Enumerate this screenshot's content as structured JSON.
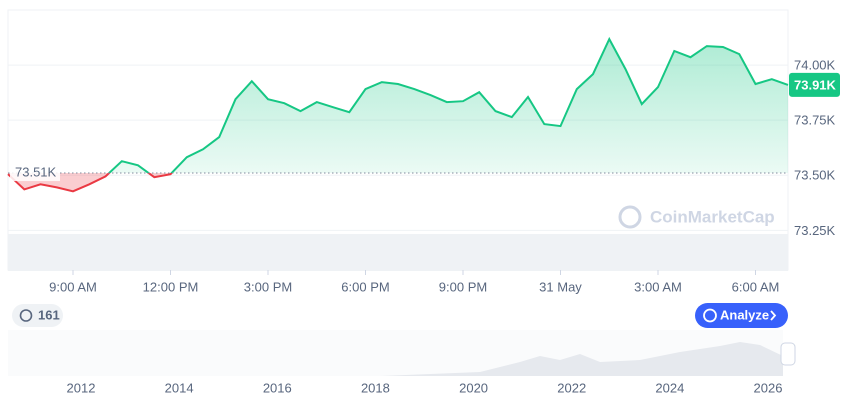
{
  "chart_data": {
    "type": "line",
    "x": [
      0,
      0.5,
      1,
      1.5,
      2,
      2.5,
      3,
      3.5,
      4,
      4.5,
      5,
      5.5,
      6,
      6.5,
      7,
      7.5,
      8,
      8.5,
      9,
      9.5,
      10,
      10.5,
      11,
      11.5,
      12,
      12.5,
      13,
      13.5,
      14,
      14.5,
      15,
      15.5,
      16,
      16.5,
      17,
      17.5,
      18,
      18.5,
      19,
      19.5,
      20,
      20.5,
      21,
      21.5,
      22,
      22.5,
      23,
      23.5,
      24
    ],
    "values": [
      73505,
      73436,
      73459,
      73445,
      73427,
      73459,
      73495,
      73564,
      73545,
      73491,
      73505,
      73582,
      73618,
      73673,
      73845,
      73927,
      73845,
      73827,
      73791,
      73832,
      73809,
      73786,
      73891,
      73923,
      73914,
      73891,
      73864,
      73832,
      73836,
      73877,
      73791,
      73764,
      73855,
      73732,
      73723,
      73891,
      73959,
      74118,
      73982,
      73823,
      73900,
      74064,
      74036,
      74086,
      74082,
      74050,
      73914,
      73936,
      73910
    ],
    "xlim": [
      0,
      24
    ],
    "xticks": [
      {
        "value": 2,
        "label": "9:00 AM"
      },
      {
        "value": 5,
        "label": "12:00 PM"
      },
      {
        "value": 8,
        "label": "3:00 PM"
      },
      {
        "value": 11,
        "label": "6:00 PM"
      },
      {
        "value": 14,
        "label": "9:00 PM"
      },
      {
        "value": 17,
        "label": "31 May"
      },
      {
        "value": 20,
        "label": "3:00 AM"
      },
      {
        "value": 23,
        "label": "6:00 AM"
      }
    ],
    "ylim": [
      73070,
      74250
    ],
    "yticks": [
      {
        "value": 74000,
        "label": "74.00K"
      },
      {
        "value": 73750,
        "label": "73.75K"
      },
      {
        "value": 73500,
        "label": "73.50K"
      },
      {
        "value": 73250,
        "label": "73.25K"
      }
    ],
    "baseline": {
      "value": 73510,
      "label": "73.51K"
    },
    "current_price": {
      "value": 73910,
      "label": "73.91K"
    },
    "up_color": "#16c784",
    "down_color": "#ea3943",
    "grid": true
  },
  "watermark": "CoinMarketCap",
  "history_badge": "161",
  "analyze_button": "Analyze",
  "navigator": {
    "years": [
      "2012",
      "2014",
      "2016",
      "2018",
      "2020",
      "2022",
      "2024",
      "2026"
    ]
  }
}
